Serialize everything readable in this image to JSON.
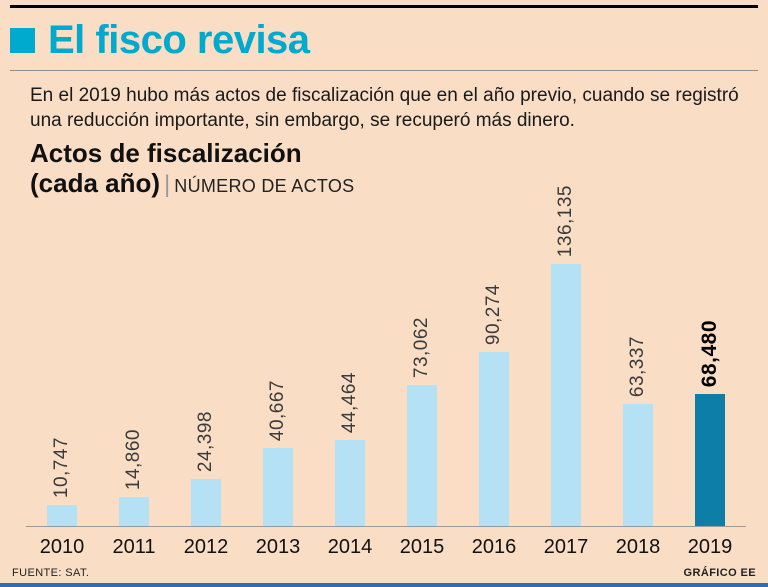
{
  "header": {
    "title": "El fisco revisa"
  },
  "intro": {
    "text": "En el 2019 hubo más actos de fiscalización que en el año previo, cuando se registró una reducción importante, sin embargo, se recuperó más dinero."
  },
  "chart_title": {
    "line1": "Actos de fiscalización",
    "line2": "(cada año)",
    "separator": "|",
    "subtitle": "NÚMERO DE ACTOS"
  },
  "footer": {
    "source": "FUENTE: SAT.",
    "credit": "GRÁFICO EE"
  },
  "colors": {
    "accent": "#00a9ce",
    "background": "#f9ddc4",
    "bar": "#b5e1f5",
    "bar_highlight": "#0d7ea8",
    "bottom_line": "#2f6eb5"
  },
  "chart_data": {
    "type": "bar",
    "title": "Actos de fiscalización (cada año)",
    "ylabel": "NÚMERO DE ACTOS",
    "xlabel": "",
    "categories": [
      "2010",
      "2011",
      "2012",
      "2013",
      "2014",
      "2015",
      "2016",
      "2017",
      "2018",
      "2019"
    ],
    "values": [
      10747,
      14860,
      24398,
      40667,
      44464,
      73062,
      90274,
      136135,
      63337,
      68480
    ],
    "labels": [
      "10,747",
      "14,860",
      "24,398",
      "40,667",
      "44,464",
      "73,062",
      "90,274",
      "136,135",
      "63,337",
      "68,480"
    ],
    "highlight_index": 9,
    "ylim": [
      0,
      140000
    ],
    "grid": false,
    "legend": "none",
    "value_label_orientation": "vertical"
  }
}
